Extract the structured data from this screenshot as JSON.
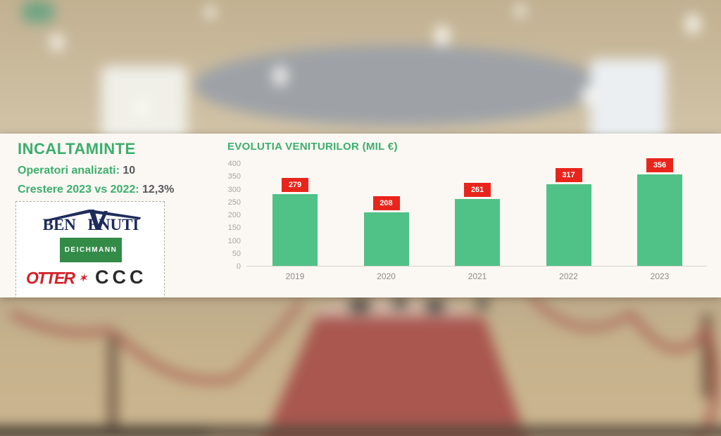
{
  "panel": {
    "title": "INCALTAMINTE",
    "stats": [
      {
        "label": "Operatori analizati:",
        "value": "10"
      },
      {
        "label": "Crestere 2023 vs 2022:",
        "value": "12,3%"
      }
    ],
    "logos": {
      "benvenuti": {
        "part1": "BEN",
        "v": "V",
        "part2": "ENUTI"
      },
      "deichmann": {
        "text": "DEICHMANN"
      },
      "otter": {
        "text": "OTTER"
      },
      "ccc": {
        "text": "CCC"
      }
    }
  },
  "chart_data": {
    "type": "bar",
    "title": "EVOLUTIA VENITURILOR (MIL €)",
    "categories": [
      "2019",
      "2020",
      "2021",
      "2022",
      "2023"
    ],
    "values": [
      279,
      208,
      261,
      317,
      356
    ],
    "ylim": [
      0,
      400
    ],
    "yticks": [
      0,
      50,
      100,
      150,
      200,
      250,
      300,
      350,
      400
    ],
    "grid": false,
    "legend": "none",
    "xlabel": "",
    "ylabel": ""
  },
  "colors": {
    "accent_green": "#3BAE6C",
    "value_gray": "#58595B",
    "bar_green": "#50C187",
    "label_red": "#E8251C",
    "label_text": "#FFFFFF",
    "panel_bg": "#FBF8F4",
    "deichmann_green": "#338B48",
    "benvenuti_navy": "#1E2C5A",
    "otter_red": "#D42027",
    "ccc_black": "#2B2A29"
  }
}
